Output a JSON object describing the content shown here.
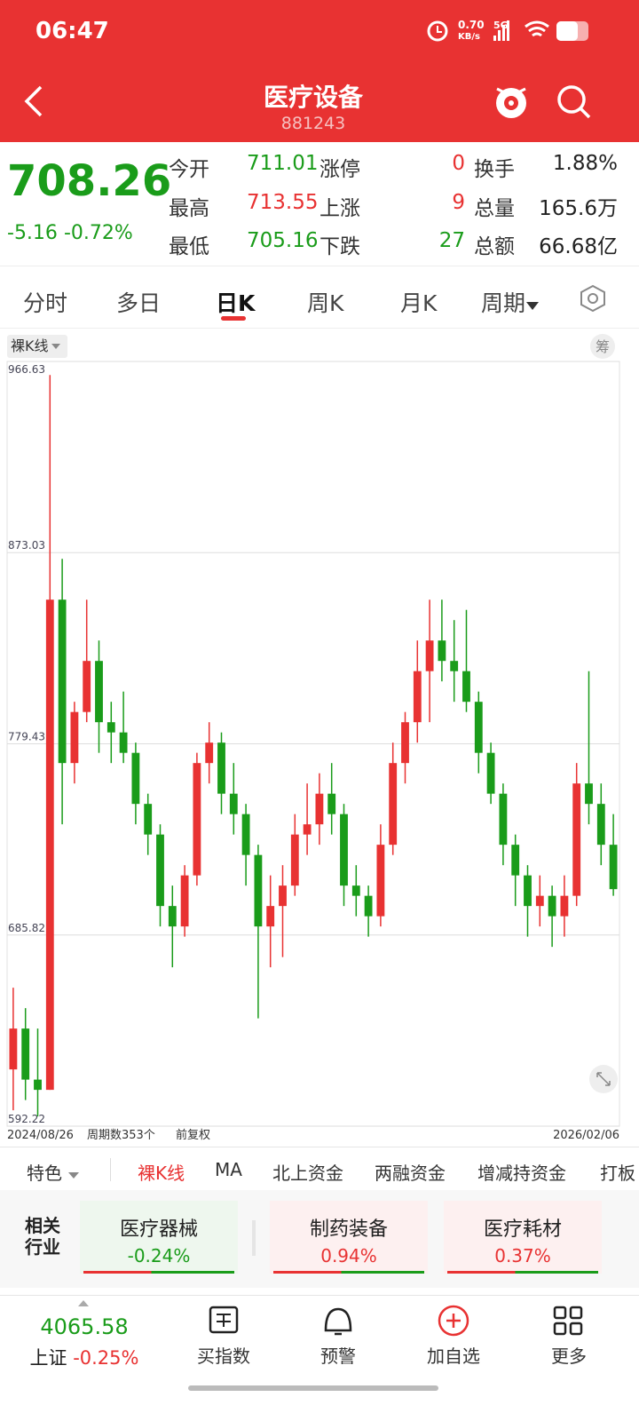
{
  "status": {
    "time": "06:47",
    "net": "0.70",
    "net_unit": "KB/s",
    "signal": "5G"
  },
  "header": {
    "title": "医疗设备",
    "code": "881243"
  },
  "quote": {
    "price": "708.26",
    "change": "-5.16",
    "change_pct": "-0.72%",
    "col1": [
      [
        "今开",
        "711.01"
      ],
      [
        "最高",
        "713.55"
      ],
      [
        "最低",
        "705.16"
      ]
    ],
    "col2": [
      [
        "涨停",
        "0"
      ],
      [
        "上涨",
        "9"
      ],
      [
        "下跌",
        "27"
      ]
    ],
    "col3": [
      [
        "换手",
        "1.88%"
      ],
      [
        "总量",
        "165.6万"
      ],
      [
        "总额",
        "66.68亿"
      ]
    ]
  },
  "tabs": [
    "分时",
    "多日",
    "日K",
    "周K",
    "月K",
    "周期"
  ],
  "chart_data": {
    "type": "candlestick",
    "label": "裸K线",
    "side_button": "筹",
    "x_start": "2024/08/26",
    "x_end": "2026/02/06",
    "period_count": "周期数353个",
    "adjust": "前复权",
    "ylim": [
      592.22,
      966.63
    ],
    "yticks": [
      592.22,
      685.82,
      779.43,
      873.03,
      966.63
    ],
    "up_color": "#e83232",
    "down_color": "#1a9c1a",
    "open": [
      620,
      640,
      615,
      610,
      850,
      770,
      795,
      820,
      790,
      785,
      775,
      750,
      735,
      700,
      690,
      715,
      770,
      780,
      755,
      745,
      725,
      690,
      700,
      710,
      735,
      740,
      755,
      745,
      710,
      705,
      695,
      730,
      770,
      790,
      815,
      830,
      820,
      815,
      800,
      775,
      755,
      730,
      715,
      700,
      705,
      695,
      705,
      760,
      750,
      730
    ],
    "high": [
      660,
      650,
      640,
      960,
      870,
      800,
      850,
      830,
      800,
      805,
      780,
      755,
      740,
      710,
      720,
      775,
      790,
      785,
      770,
      750,
      730,
      715,
      720,
      745,
      760,
      765,
      770,
      750,
      720,
      710,
      740,
      780,
      795,
      830,
      850,
      850,
      840,
      845,
      805,
      780,
      760,
      735,
      720,
      715,
      710,
      715,
      770,
      815,
      760,
      745
    ],
    "low": [
      600,
      605,
      597,
      610,
      740,
      760,
      790,
      775,
      770,
      770,
      740,
      725,
      690,
      670,
      685,
      710,
      760,
      745,
      735,
      710,
      645,
      670,
      675,
      705,
      725,
      730,
      735,
      700,
      695,
      685,
      690,
      725,
      760,
      780,
      790,
      810,
      800,
      795,
      765,
      750,
      720,
      700,
      685,
      690,
      680,
      685,
      700,
      740,
      720,
      705
    ],
    "close": [
      640,
      615,
      610,
      850,
      770,
      795,
      820,
      790,
      785,
      775,
      750,
      735,
      700,
      690,
      715,
      770,
      780,
      755,
      745,
      725,
      690,
      700,
      710,
      735,
      740,
      755,
      745,
      710,
      705,
      695,
      730,
      770,
      790,
      815,
      830,
      820,
      815,
      800,
      775,
      755,
      730,
      715,
      700,
      705,
      695,
      705,
      760,
      750,
      730,
      708.26
    ]
  },
  "indicator_tabs": [
    "特色",
    "裸K线",
    "MA",
    "北上资金",
    "两融资金",
    "增减持资金",
    "打板"
  ],
  "related": {
    "label": [
      "相关",
      "行业"
    ],
    "items": [
      {
        "name": "医疗器械",
        "pct": "-0.24%"
      },
      {
        "name": "制药装备",
        "pct": "0.94%"
      },
      {
        "name": "医疗耗材",
        "pct": "0.37%"
      }
    ]
  },
  "bottom": {
    "index_value": "4065.58",
    "index_name": "上证",
    "index_pct": "-0.25%",
    "items": [
      "买指数",
      "预警",
      "加自选",
      "更多"
    ]
  }
}
